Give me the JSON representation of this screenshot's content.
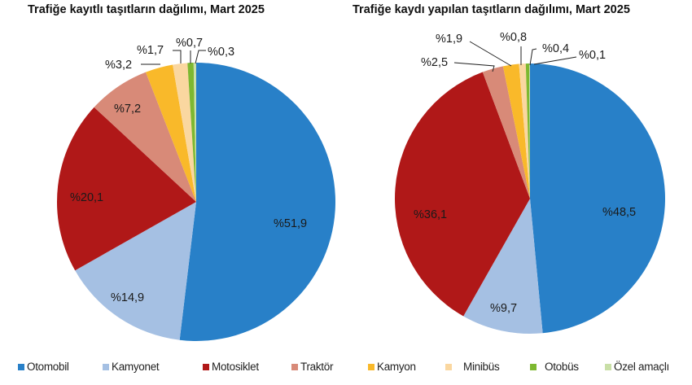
{
  "chart_data": [
    {
      "type": "pie",
      "title": "Trafiğe kayıtlı taşıtların dağılımı, Mart 2025",
      "categories": [
        "Otomobil",
        "Kamyonet",
        "Motosiklet",
        "Traktör",
        "Kamyon",
        "Minibüs",
        "Otobüs",
        "Özel amaçlı"
      ],
      "values": [
        51.9,
        14.9,
        20.1,
        7.2,
        3.2,
        1.7,
        0.7,
        0.3
      ],
      "labels": [
        "%51,9",
        "%14,9",
        "%20,1",
        "%7,2",
        "%3,2",
        "%1,7",
        "%0,7",
        "%0,3"
      ],
      "start_angle": "12 o'clock, clockwise",
      "legend_position": "bottom"
    },
    {
      "type": "pie",
      "title": "Trafiğe kaydı yapılan taşıtların dağılımı, Mart 2025",
      "categories": [
        "Otomobil",
        "Kamyonet",
        "Motosiklet",
        "Traktör",
        "Kamyon",
        "Minibüs",
        "Otobüs",
        "Özel amaçlı"
      ],
      "values": [
        48.5,
        9.7,
        36.1,
        2.5,
        1.9,
        0.8,
        0.4,
        0.1
      ],
      "labels": [
        "%48,5",
        "%9,7",
        "%36,1",
        "%2,5",
        "%1,9",
        "%0,8",
        "%0,4",
        "%0,1"
      ],
      "start_angle": "12 o'clock, clockwise",
      "legend_position": "bottom"
    }
  ],
  "titles": {
    "left": "Trafiğe kayıtlı taşıtların dağılımı, Mart 2025",
    "right": "Trafiğe kaydı yapılan taşıtların dağılımı, Mart 2025"
  },
  "colors": {
    "Otomobil": "#2880C8",
    "Kamyonet": "#A5C0E3",
    "Motosiklet": "#B01818",
    "Traktör": "#D88A78",
    "Kamyon": "#F9B92A",
    "Minibüs": "#FAD7A0",
    "Otobüs": "#7DB830",
    "Özel amaçlı": "#C9DFA7"
  },
  "legend": [
    {
      "label": "Otomobil",
      "color": "#2880C8"
    },
    {
      "label": "Kamyonet",
      "color": "#A5C0E3"
    },
    {
      "label": "Motosiklet",
      "color": "#B01818"
    },
    {
      "label": "Traktör",
      "color": "#D88A78"
    },
    {
      "label": "Kamyon",
      "color": "#F9B92A"
    },
    {
      "label": "Minibüs",
      "color": "#FAD7A0"
    },
    {
      "label": "Otobüs",
      "color": "#7DB830"
    },
    {
      "label": "Özel amaçlı",
      "color": "#C9DFA7"
    }
  ]
}
